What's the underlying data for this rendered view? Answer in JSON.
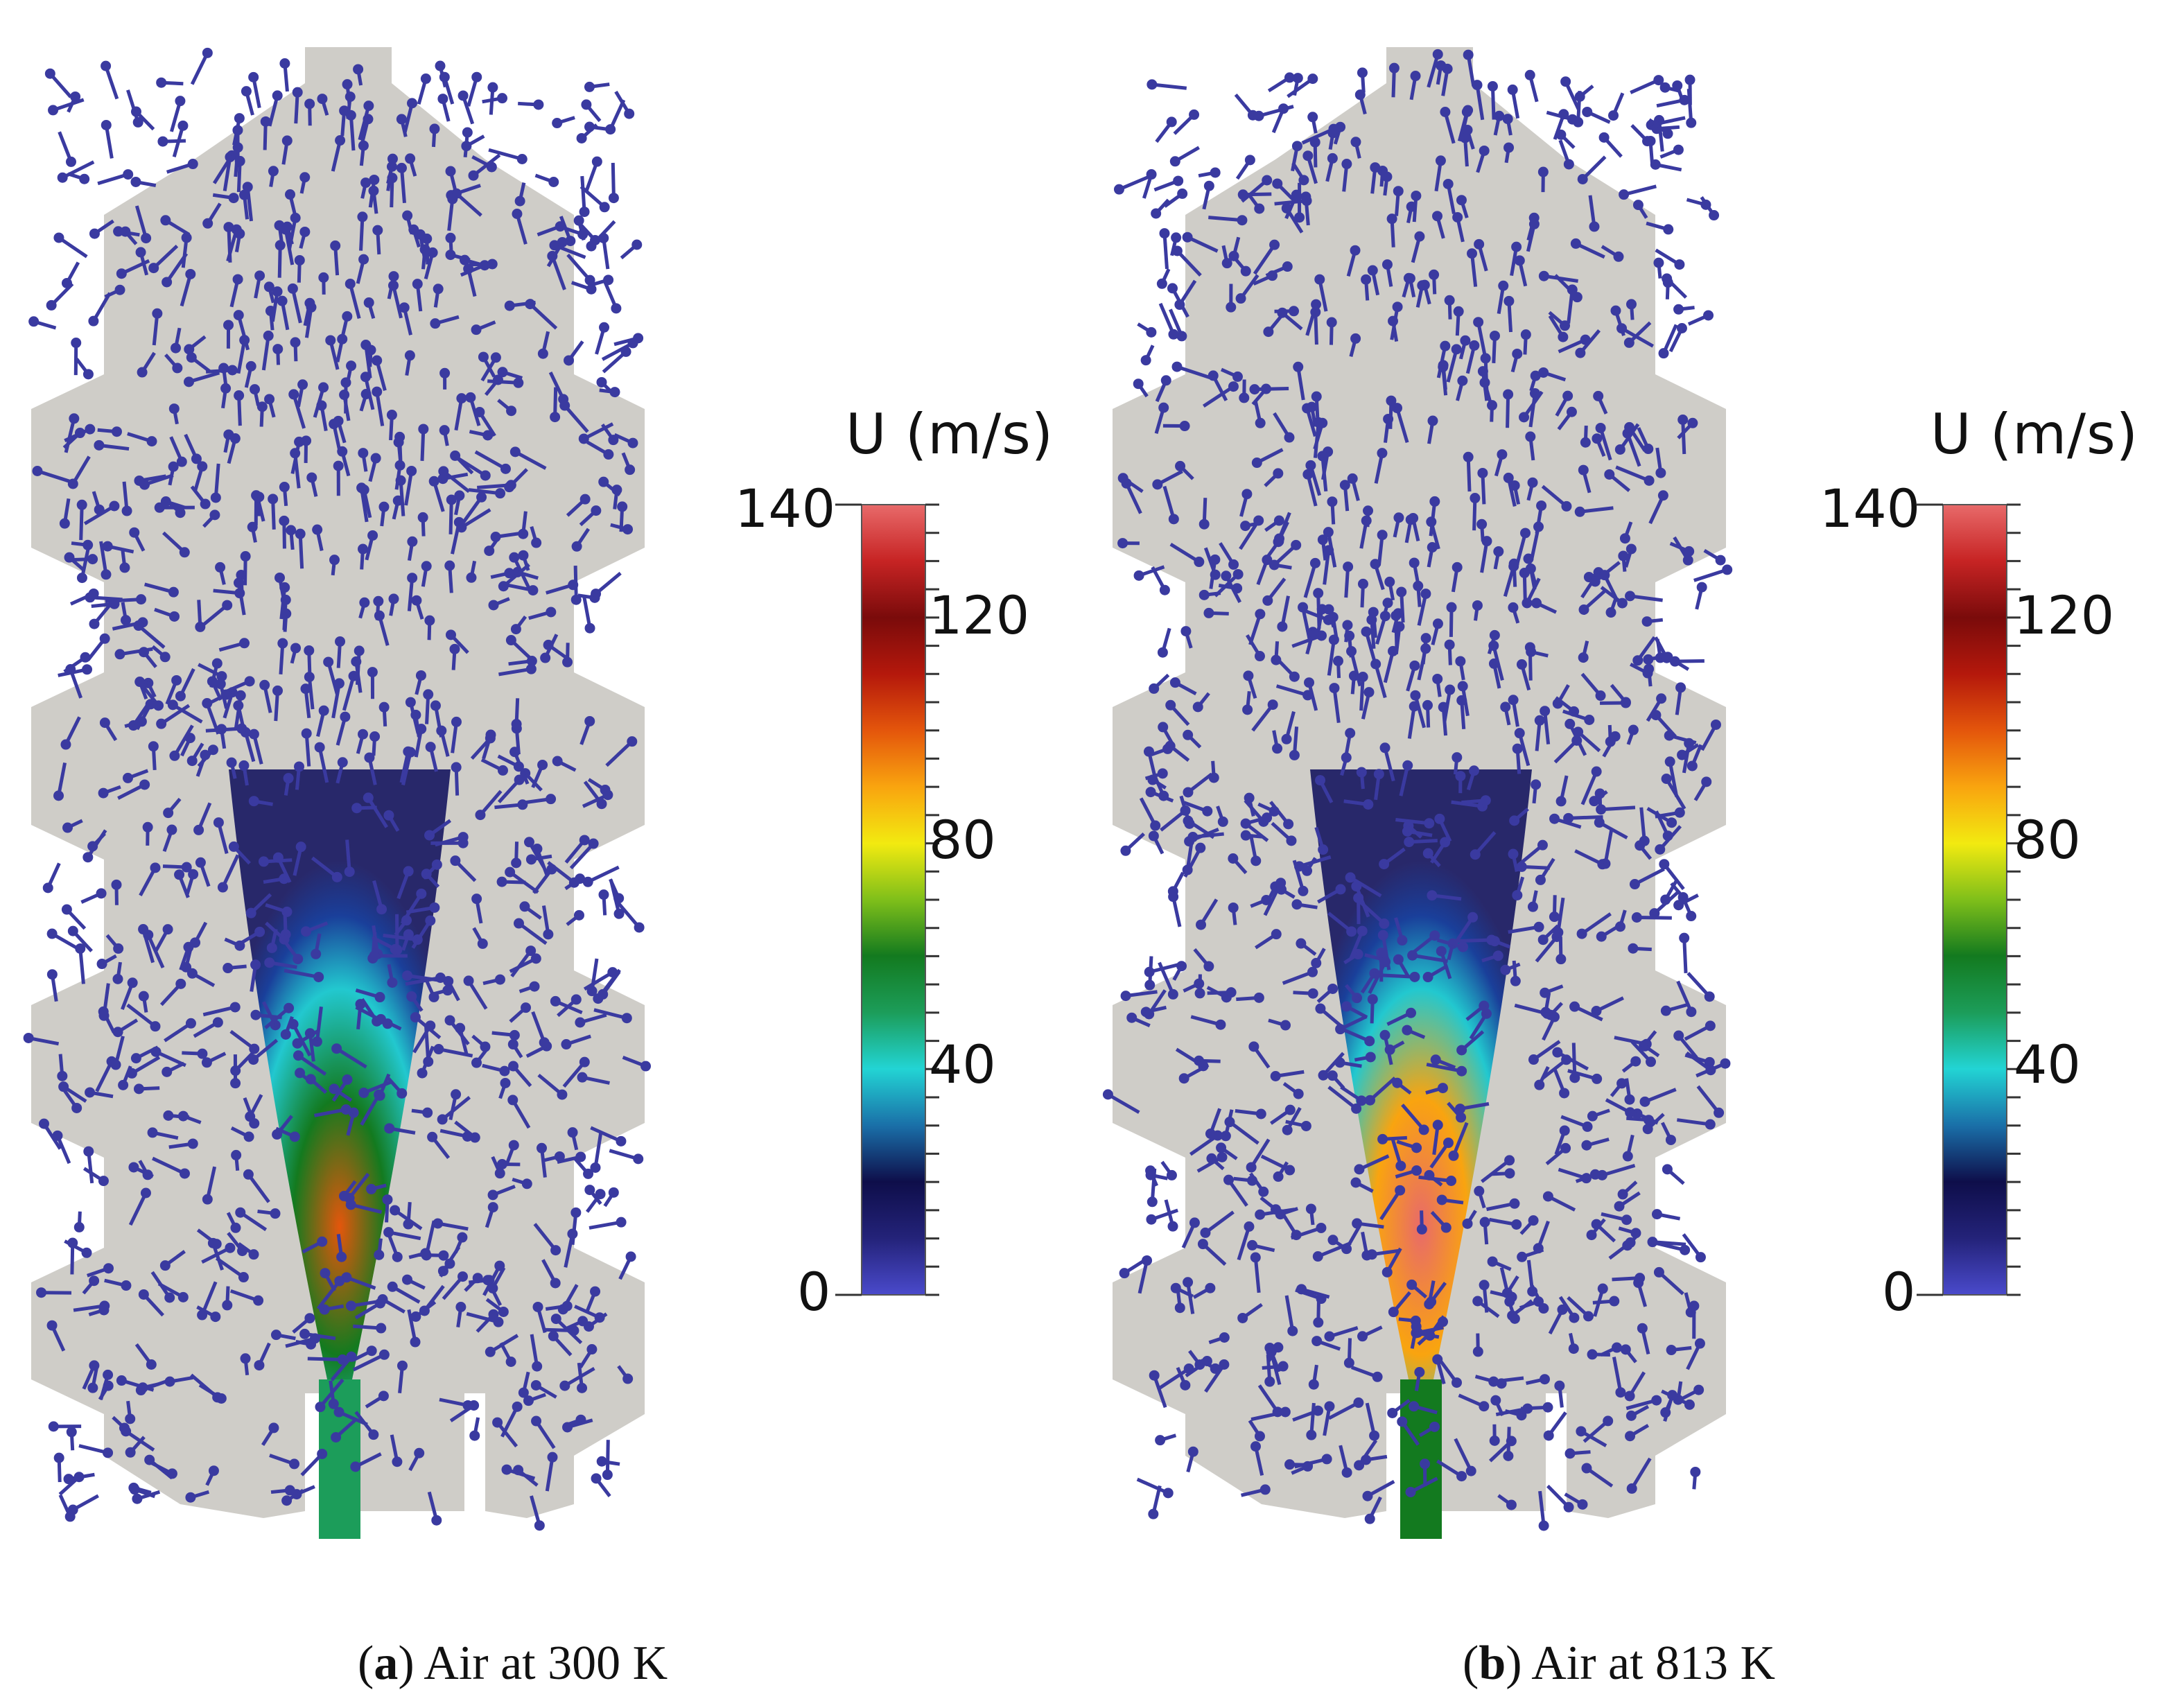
{
  "panels": [
    {
      "letter": "a",
      "caption": "Air at 300 K",
      "colorbar": {
        "title": "U (m/s)",
        "ticks": [
          "140",
          "120",
          "80",
          "40",
          "0"
        ]
      },
      "peak_color_fraction": 0.72
    },
    {
      "letter": "b",
      "caption": "Air at 813 K",
      "colorbar": {
        "title": "U (m/s)",
        "ticks": [
          "140",
          "120",
          "80",
          "40",
          "0"
        ]
      },
      "peak_color_fraction": 1.0
    }
  ],
  "colormap": [
    "#4a4acb",
    "#24237a",
    "#0e0e4a",
    "#1a6fa8",
    "#22d4d4",
    "#1c9d5a",
    "#137a1f",
    "#7fbf1a",
    "#f2ea10",
    "#f9a40f",
    "#e4560c",
    "#b4180c",
    "#7a0b0b",
    "#c72424",
    "#e86a6a"
  ],
  "colors": {
    "domain": "#cfcdc8",
    "arrow": "#3a3aa0",
    "background": "#ffffff"
  }
}
